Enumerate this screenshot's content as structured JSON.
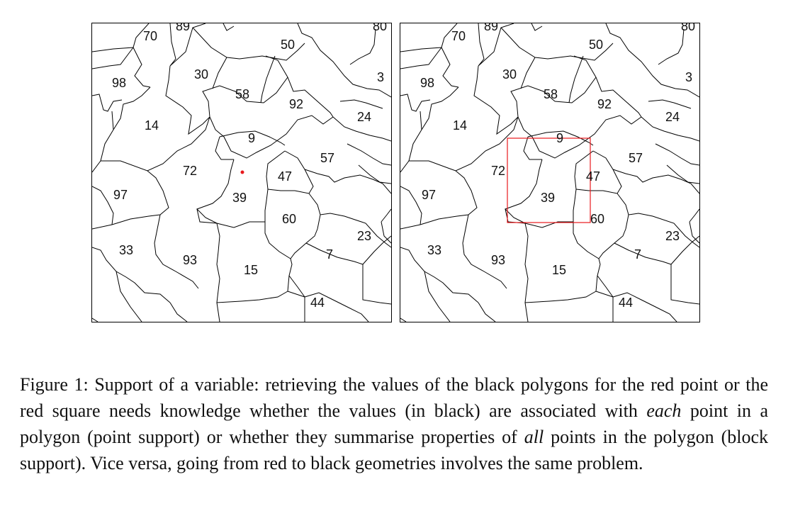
{
  "figure": {
    "panels": [
      {
        "id": "left",
        "regions": [
          "70",
          "89",
          "50",
          "80",
          "98",
          "30",
          "3",
          "58",
          "92",
          "24",
          "14",
          "9",
          "57",
          "72",
          "47",
          "39",
          "97",
          "60",
          "33",
          "93",
          "23",
          "7",
          "15",
          "44"
        ],
        "overlay": "red point"
      },
      {
        "id": "right",
        "regions": [
          "70",
          "89",
          "50",
          "80",
          "98",
          "30",
          "3",
          "58",
          "92",
          "24",
          "14",
          "9",
          "57",
          "72",
          "47",
          "39",
          "97",
          "60",
          "33",
          "93",
          "23",
          "7",
          "15",
          "44"
        ],
        "overlay": "red square"
      }
    ],
    "colors": {
      "boundary": "#000000",
      "overlay": "#e8191d"
    },
    "caption": {
      "part1": "Figure 1: Support of a variable: retrieving the values of the black polygons for the red point or the red square needs knowledge whether the values (in black) are associated with ",
      "em1": "each",
      "part2": " point in a polygon (point support) or whether they summarise properties of ",
      "em2": "all",
      "part3": " points in the polygon (block support). Vice versa, going from red to black geometries involves the same problem."
    }
  }
}
